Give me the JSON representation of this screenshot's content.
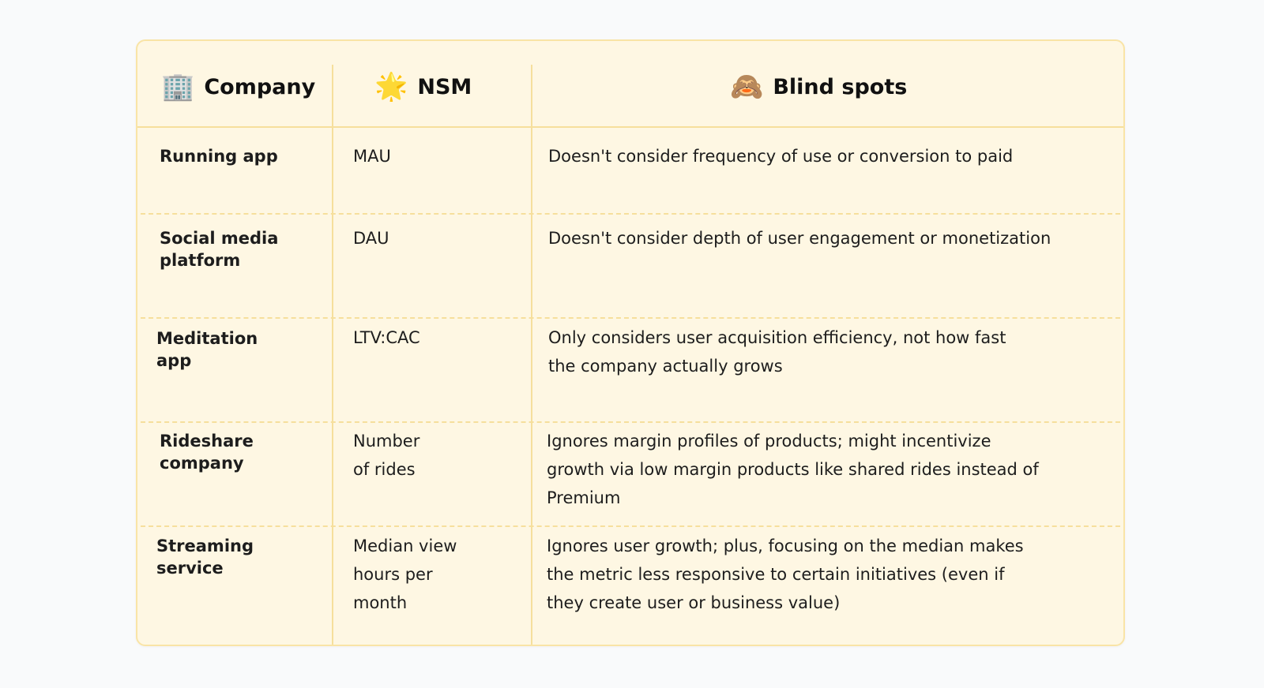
{
  "header": {
    "company": {
      "icon": "office-building-icon",
      "glyph": "🏢",
      "label": "Company"
    },
    "nsm": {
      "icon": "star-icon",
      "glyph": "🌟",
      "label": "NSM"
    },
    "blind": {
      "icon": "see-no-evil-monkey-icon",
      "glyph": "🙈",
      "label": "Blind spots"
    }
  },
  "rows": [
    {
      "company": "Running app",
      "nsm": "MAU",
      "blind": "Doesn't consider frequency of use or conversion to paid"
    },
    {
      "company": "Social media platform",
      "nsm": "DAU",
      "blind": "Doesn't consider depth of user engagement or monetization"
    },
    {
      "company": "Meditation app",
      "nsm": "LTV:CAC",
      "blind": "Only considers user acquisition efficiency, not how fast the company actually grows"
    },
    {
      "company": "Rideshare company",
      "nsm": "Number of rides",
      "blind": "Ignores margin profiles of products; might incentivize growth via low margin products like shared rides instead of Premium"
    },
    {
      "company": "Streaming service",
      "nsm": "Median view hours per month",
      "blind": "Ignores user growth; plus, focusing on the median makes the metric less responsive to certain initiatives (even if they create user or business value)"
    }
  ],
  "colors": {
    "card_bg": "#fef7e3",
    "border": "#f9e4a6",
    "divider": "#f6df9c",
    "page_bg": "#f9fafb"
  }
}
